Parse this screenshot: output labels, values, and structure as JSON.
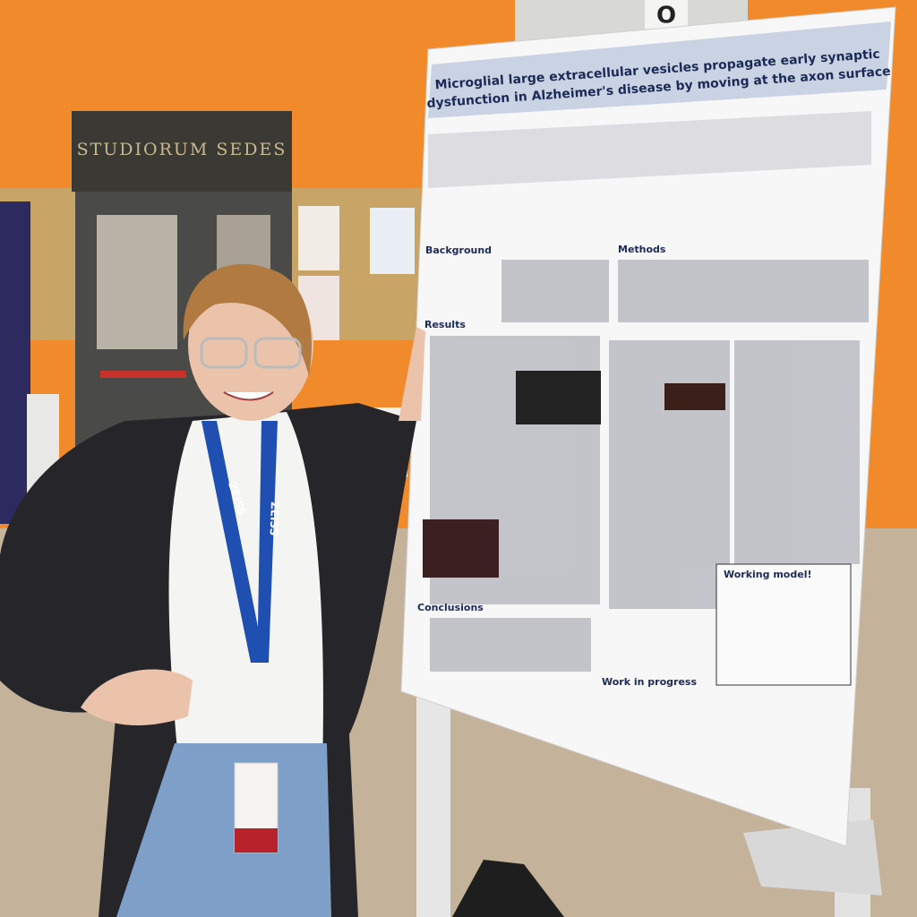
{
  "sign": {
    "text": "STUDIORUM SEDES"
  },
  "room_sign": "O",
  "lanyard": "ZEISS",
  "poster": {
    "title_lines": [
      "Microglial large extracellular vesicles propagate early synaptic",
      "dysfunction in Alzheimer's disease by moving at the axon surface"
    ],
    "sections": [
      "Background",
      "Methods",
      "Results",
      "Conclusions",
      "Working model!",
      "Work in progress"
    ]
  }
}
